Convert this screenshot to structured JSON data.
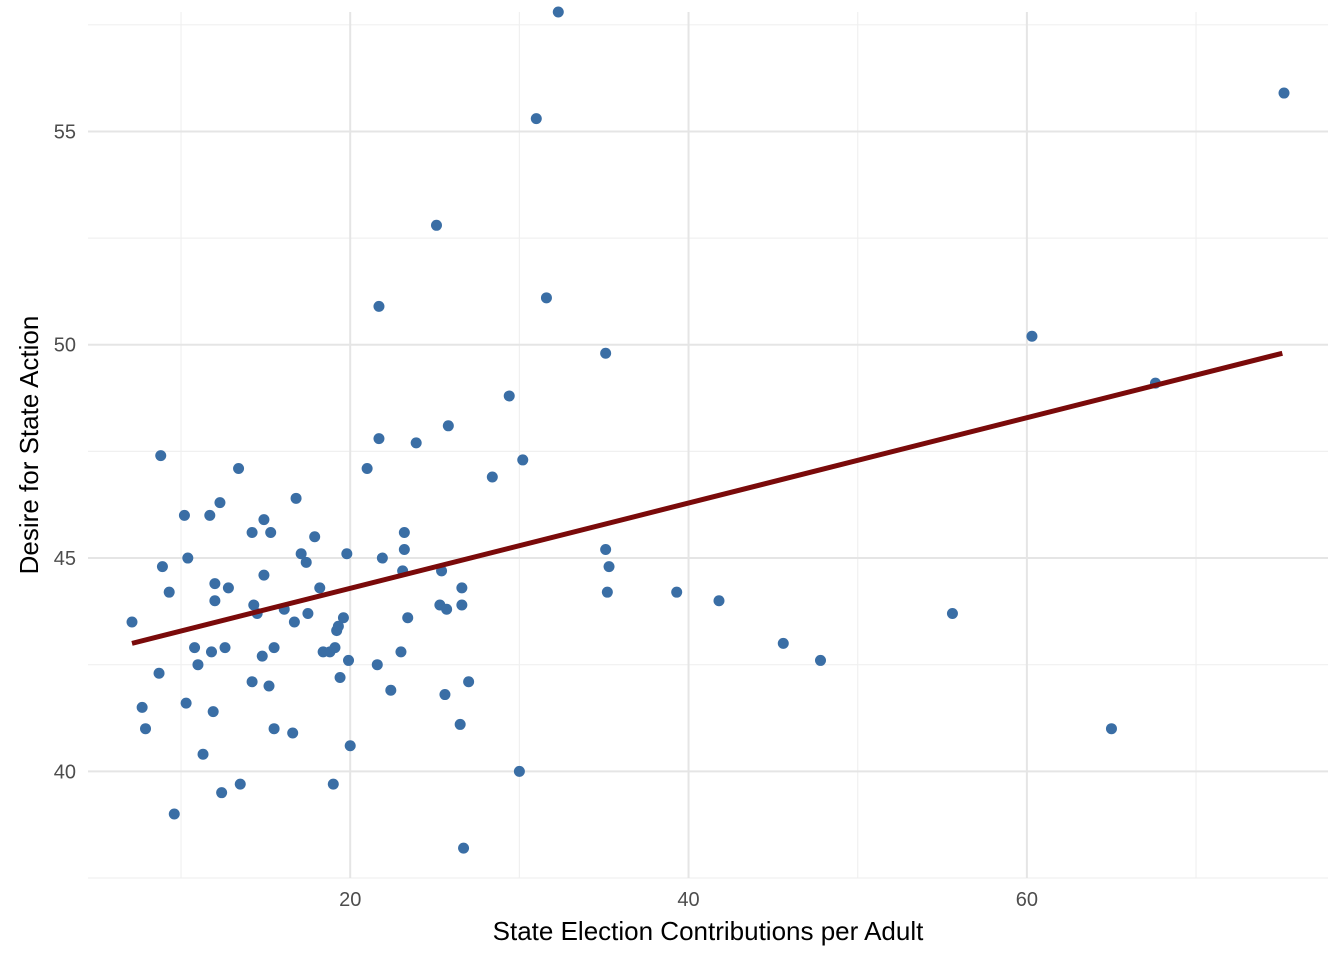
{
  "chart_data": {
    "type": "scatter",
    "title": "",
    "xlabel": "State Election Contributions per Adult",
    "ylabel": "Desire for State Action",
    "xlim": [
      4.5,
      77.8
    ],
    "ylim": [
      37.5,
      57.8
    ],
    "x_ticks": [
      20,
      40,
      60
    ],
    "y_ticks": [
      40,
      45,
      50,
      55
    ],
    "x_minor_ticks": [
      10,
      30,
      50,
      70
    ],
    "y_minor_ticks": [
      37.5,
      42.5,
      47.5,
      52.5,
      57.5
    ],
    "grid": true,
    "legend": "none",
    "point_color": "#3a6ea5",
    "line_color": "#7a0a0a",
    "background": "#ffffff",
    "series": [
      {
        "values_xy": [
          [
            7.1,
            43.5
          ],
          [
            7.7,
            41.5
          ],
          [
            7.9,
            41.0
          ],
          [
            8.7,
            42.3
          ],
          [
            8.8,
            47.4
          ],
          [
            8.9,
            44.8
          ],
          [
            9.3,
            44.2
          ],
          [
            9.6,
            39.0
          ],
          [
            10.2,
            46.0
          ],
          [
            10.3,
            41.6
          ],
          [
            10.4,
            45.0
          ],
          [
            10.8,
            42.9
          ],
          [
            11.0,
            42.5
          ],
          [
            11.3,
            40.4
          ],
          [
            11.7,
            46.0
          ],
          [
            11.8,
            42.8
          ],
          [
            11.9,
            41.4
          ],
          [
            12.0,
            44.4
          ],
          [
            12.0,
            44.0
          ],
          [
            12.3,
            46.3
          ],
          [
            12.4,
            39.5
          ],
          [
            12.6,
            42.9
          ],
          [
            12.8,
            44.3
          ],
          [
            13.4,
            47.1
          ],
          [
            13.5,
            39.7
          ],
          [
            14.2,
            45.6
          ],
          [
            14.2,
            42.1
          ],
          [
            14.3,
            43.9
          ],
          [
            14.5,
            43.7
          ],
          [
            14.8,
            42.7
          ],
          [
            14.9,
            44.6
          ],
          [
            14.9,
            45.9
          ],
          [
            15.2,
            42.0
          ],
          [
            15.3,
            45.6
          ],
          [
            15.5,
            41.0
          ],
          [
            15.5,
            42.9
          ],
          [
            16.1,
            43.8
          ],
          [
            16.6,
            40.9
          ],
          [
            16.7,
            43.5
          ],
          [
            16.8,
            46.4
          ],
          [
            17.1,
            45.1
          ],
          [
            17.4,
            44.9
          ],
          [
            17.5,
            43.7
          ],
          [
            17.9,
            45.5
          ],
          [
            18.2,
            44.3
          ],
          [
            18.4,
            42.8
          ],
          [
            18.8,
            42.8
          ],
          [
            19.0,
            39.7
          ],
          [
            19.1,
            42.9
          ],
          [
            19.2,
            43.3
          ],
          [
            19.3,
            43.4
          ],
          [
            19.4,
            42.2
          ],
          [
            19.6,
            43.6
          ],
          [
            19.8,
            45.1
          ],
          [
            19.9,
            42.6
          ],
          [
            20.0,
            40.6
          ],
          [
            21.0,
            47.1
          ],
          [
            21.6,
            42.5
          ],
          [
            21.7,
            47.8
          ],
          [
            21.7,
            50.9
          ],
          [
            21.9,
            45.0
          ],
          [
            22.4,
            41.9
          ],
          [
            23.0,
            42.8
          ],
          [
            23.1,
            44.7
          ],
          [
            23.2,
            45.2
          ],
          [
            23.2,
            45.6
          ],
          [
            23.4,
            43.6
          ],
          [
            23.9,
            47.7
          ],
          [
            25.1,
            52.8
          ],
          [
            25.3,
            43.9
          ],
          [
            25.4,
            44.7
          ],
          [
            25.6,
            41.8
          ],
          [
            25.7,
            43.8
          ],
          [
            25.8,
            48.1
          ],
          [
            26.5,
            41.1
          ],
          [
            26.6,
            43.9
          ],
          [
            26.6,
            44.3
          ],
          [
            26.7,
            38.2
          ],
          [
            27.0,
            42.1
          ],
          [
            28.4,
            46.9
          ],
          [
            29.4,
            48.8
          ],
          [
            30.0,
            40.0
          ],
          [
            30.2,
            47.3
          ],
          [
            31.0,
            55.3
          ],
          [
            31.6,
            51.1
          ],
          [
            32.3,
            57.8
          ],
          [
            35.1,
            45.2
          ],
          [
            35.1,
            49.8
          ],
          [
            35.2,
            44.2
          ],
          [
            35.3,
            44.8
          ],
          [
            39.3,
            44.2
          ],
          [
            41.8,
            44.0
          ],
          [
            45.6,
            43.0
          ],
          [
            47.8,
            42.6
          ],
          [
            55.6,
            43.7
          ],
          [
            60.3,
            50.2
          ],
          [
            65.0,
            41.0
          ],
          [
            67.6,
            49.1
          ],
          [
            75.2,
            55.9
          ]
        ]
      }
    ],
    "regression_line": {
      "x": [
        7.1,
        75.1
      ],
      "y": [
        43.0,
        49.8
      ]
    }
  }
}
